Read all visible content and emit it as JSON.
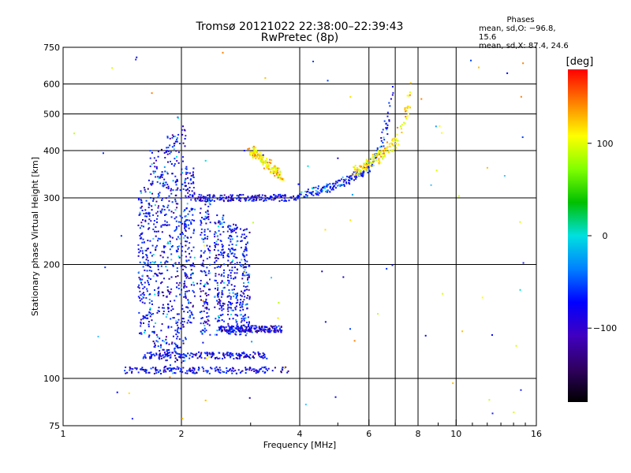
{
  "chart_data": {
    "type": "scatter",
    "title_line1": "Tromsø 20121022 22:38:00–22:39:43",
    "title_line2": "RwPretec (8p)",
    "xlabel": "Frequency [MHz]",
    "ylabel": "Stationary phase Virtual Height [km]",
    "x_scale": "log",
    "y_scale": "log",
    "xlim": [
      1,
      16
    ],
    "ylim": [
      75,
      750
    ],
    "x_ticks": [
      1,
      2,
      4,
      6,
      8,
      10,
      16
    ],
    "x_minor_ticks": [
      3,
      5,
      7,
      9,
      11,
      12,
      13,
      14,
      15
    ],
    "y_ticks": [
      75,
      100,
      200,
      300,
      400,
      500,
      600,
      750
    ],
    "x_grid": [
      2,
      4,
      6,
      7,
      8,
      10
    ],
    "y_grid": [
      100,
      200,
      300,
      400,
      500,
      600
    ],
    "phase_info": {
      "heading": "Phases",
      "line_o": "mean, sd,O:  −96.8, 15.6",
      "line_x": "mean, sd,X:  87.4, 24.6"
    },
    "colorbar": {
      "unit_label": "[deg]",
      "range": [
        -180,
        180
      ],
      "tick_labels": [
        "100",
        "0",
        "−100"
      ],
      "tick_values": [
        100,
        0,
        -100
      ],
      "colors": [
        "#ff0000",
        "#ff8000",
        "#ffff00",
        "#80ff00",
        "#00c000",
        "#00e0e0",
        "#0080ff",
        "#0000ff",
        "#4000c0",
        "#300060",
        "#000000"
      ]
    },
    "o_trace": [
      {
        "name": "E layer",
        "x_range": [
          1.4,
          3.8
        ],
        "y": 105
      },
      {
        "name": "F1 lower",
        "x_range": [
          1.6,
          3.3
        ],
        "y": 115
      },
      {
        "name": "F1 trace",
        "x_range": [
          2.5,
          3.6
        ],
        "y": 135
      },
      {
        "name": "F2 base",
        "x_range": [
          2.1,
          4.0
        ],
        "y": 300
      },
      {
        "name": "F2 rise",
        "points": [
          [
            4.0,
            305
          ],
          [
            4.8,
            320
          ],
          [
            5.5,
            340
          ],
          [
            6.0,
            360
          ],
          [
            6.4,
            400
          ],
          [
            6.6,
            450
          ],
          [
            6.8,
            520
          ],
          [
            6.9,
            580
          ]
        ]
      }
    ],
    "x_trace": [
      {
        "name": "X F1",
        "x_range": [
          3.0,
          3.6
        ],
        "points": [
          [
            3.0,
            400
          ],
          [
            3.2,
            380
          ],
          [
            3.4,
            360
          ],
          [
            3.6,
            340
          ]
        ]
      },
      {
        "name": "X F2",
        "points": [
          [
            5.5,
            350
          ],
          [
            6.0,
            370
          ],
          [
            6.5,
            390
          ],
          [
            7.0,
            420
          ],
          [
            7.3,
            470
          ],
          [
            7.6,
            540
          ],
          [
            7.7,
            600
          ]
        ]
      }
    ],
    "spread_columns": [
      {
        "x": 1.6,
        "y_range": [
          130,
          320
        ]
      },
      {
        "x": 1.7,
        "y_range": [
          120,
          400
        ]
      },
      {
        "x": 1.8,
        "y_range": [
          105,
          410
        ]
      },
      {
        "x": 1.9,
        "y_range": [
          105,
          450
        ]
      },
      {
        "x": 2.0,
        "y_range": [
          105,
          490
        ]
      },
      {
        "x": 2.1,
        "y_range": [
          140,
          360
        ]
      },
      {
        "x": 2.3,
        "y_range": [
          130,
          300
        ]
      },
      {
        "x": 2.5,
        "y_range": [
          130,
          270
        ]
      },
      {
        "x": 2.7,
        "y_range": [
          130,
          260
        ]
      },
      {
        "x": 2.9,
        "y_range": [
          130,
          250
        ]
      }
    ]
  }
}
